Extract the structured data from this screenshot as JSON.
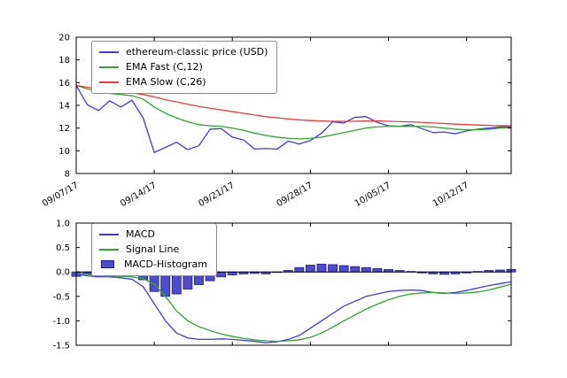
{
  "chart_data": [
    {
      "type": "line",
      "x_tick_labels": [
        "09/07/17",
        "09/14/17",
        "09/21/17",
        "09/28/17",
        "10/05/17",
        "10/12/17"
      ],
      "x_tick_positions": [
        0,
        7,
        14,
        21,
        28,
        35
      ],
      "ylim": [
        8,
        20
      ],
      "y_ticks": [
        8,
        10,
        12,
        14,
        16,
        18,
        20
      ],
      "y_tick_labels": [
        "8",
        "10",
        "12",
        "14",
        "16",
        "18",
        "20"
      ],
      "legend_position": "upper left",
      "grid": false,
      "series": [
        {
          "name": "ethereum-classic price (USD)",
          "style": "line",
          "color": "#3c3cd9",
          "values": [
            15.75,
            14.05,
            13.55,
            14.4,
            13.85,
            14.45,
            12.9,
            9.85,
            10.3,
            10.75,
            10.1,
            10.45,
            11.9,
            11.95,
            11.2,
            10.95,
            10.15,
            10.2,
            10.15,
            10.85,
            10.6,
            10.9,
            11.55,
            12.55,
            12.45,
            12.95,
            13.0,
            12.5,
            12.2,
            12.15,
            12.3,
            11.95,
            11.6,
            11.65,
            11.5,
            11.75,
            11.9,
            12.0,
            12.1,
            12.15
          ]
        },
        {
          "name": "EMA Fast (C,12)",
          "style": "line",
          "color": "#33a033",
          "values": [
            15.75,
            15.45,
            15.2,
            15.05,
            14.95,
            14.85,
            14.55,
            13.85,
            13.3,
            12.9,
            12.55,
            12.3,
            12.2,
            12.15,
            12.0,
            11.8,
            11.55,
            11.35,
            11.2,
            11.1,
            11.05,
            11.1,
            11.2,
            11.4,
            11.6,
            11.8,
            12.0,
            12.1,
            12.15,
            12.15,
            12.15,
            12.15,
            12.1,
            12.0,
            11.9,
            11.85,
            11.85,
            11.9,
            12.0,
            12.05
          ]
        },
        {
          "name": "EMA Slow (C,26)",
          "style": "line",
          "color": "#ee3b3b",
          "values": [
            15.75,
            15.6,
            15.45,
            15.32,
            15.2,
            15.1,
            14.95,
            14.75,
            14.5,
            14.3,
            14.1,
            13.9,
            13.75,
            13.6,
            13.45,
            13.3,
            13.15,
            13.0,
            12.9,
            12.8,
            12.72,
            12.66,
            12.62,
            12.6,
            12.6,
            12.6,
            12.62,
            12.63,
            12.6,
            12.57,
            12.54,
            12.5,
            12.45,
            12.4,
            12.35,
            12.3,
            12.27,
            12.24,
            12.22,
            12.2
          ]
        }
      ]
    },
    {
      "type": "line+bar",
      "x_tick_positions": [
        0,
        7,
        14,
        21,
        28,
        35
      ],
      "ylim": [
        -1.5,
        1.0
      ],
      "y_ticks": [
        -1.5,
        -1.0,
        -0.5,
        0.0,
        0.5,
        1.0
      ],
      "y_tick_labels": [
        "-1.5",
        "-1.0",
        "-0.5",
        "0.0",
        "0.5",
        "1.0"
      ],
      "legend_position": "upper left",
      "grid": false,
      "zero_line": true,
      "series": [
        {
          "name": "MACD",
          "style": "line",
          "color": "#3c3cd9",
          "values": [
            -0.05,
            -0.08,
            -0.1,
            -0.1,
            -0.12,
            -0.15,
            -0.3,
            -0.65,
            -1.0,
            -1.25,
            -1.35,
            -1.38,
            -1.38,
            -1.37,
            -1.38,
            -1.4,
            -1.42,
            -1.45,
            -1.43,
            -1.38,
            -1.3,
            -1.15,
            -1.0,
            -0.85,
            -0.7,
            -0.6,
            -0.5,
            -0.45,
            -0.4,
            -0.38,
            -0.37,
            -0.38,
            -0.42,
            -0.44,
            -0.42,
            -0.38,
            -0.33,
            -0.28,
            -0.24,
            -0.2
          ]
        },
        {
          "name": "Signal Line",
          "style": "line",
          "color": "#33a033",
          "values": [
            -0.03,
            -0.05,
            -0.07,
            -0.08,
            -0.09,
            -0.1,
            -0.14,
            -0.25,
            -0.5,
            -0.8,
            -1.0,
            -1.12,
            -1.2,
            -1.27,
            -1.32,
            -1.36,
            -1.39,
            -1.41,
            -1.42,
            -1.41,
            -1.39,
            -1.34,
            -1.25,
            -1.13,
            -1.0,
            -0.88,
            -0.76,
            -0.66,
            -0.57,
            -0.5,
            -0.45,
            -0.43,
            -0.42,
            -0.43,
            -0.44,
            -0.43,
            -0.41,
            -0.37,
            -0.31,
            -0.25
          ]
        },
        {
          "name": "MACD-Histogram",
          "style": "bar",
          "color": "#4d4dcc",
          "edge_color": "#1f1f96",
          "values": [
            -0.09,
            -0.04,
            -0.03,
            -0.02,
            -0.03,
            -0.05,
            -0.16,
            -0.4,
            -0.5,
            -0.45,
            -0.35,
            -0.26,
            -0.18,
            -0.1,
            -0.06,
            -0.04,
            -0.03,
            -0.04,
            -0.01,
            0.03,
            0.09,
            0.14,
            0.16,
            0.15,
            0.13,
            0.11,
            0.09,
            0.07,
            0.05,
            0.03,
            0.01,
            -0.02,
            -0.04,
            -0.05,
            -0.04,
            -0.02,
            0.01,
            0.03,
            0.04,
            0.05
          ]
        }
      ]
    }
  ]
}
